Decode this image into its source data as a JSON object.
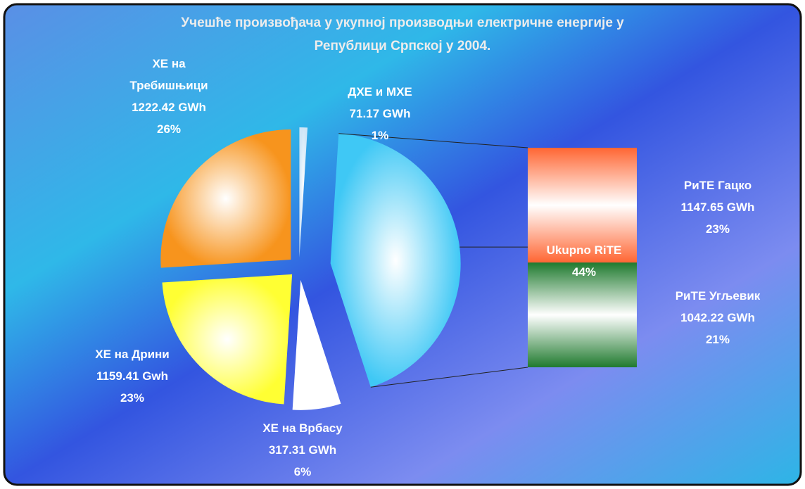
{
  "chart_data": {
    "type": "bar-of-pie",
    "title": [
      "Учешће произвођача у укупној производњи електричне енергије у",
      "Републици Српској у 2004."
    ],
    "categories": [
      "ДХЕ и МХЕ",
      "Ukupno RiTE",
      "ХЕ на Врбасу",
      "ХЕ на Дрини",
      "ХЕ на Требишњици"
    ],
    "values": [
      1,
      44,
      6,
      23,
      26
    ],
    "value_labels": [
      "1%",
      "44%",
      "6%",
      "23%",
      "26%"
    ],
    "gwh": [
      71.17,
      null,
      317.31,
      1159.41,
      1222.42
    ],
    "gwh_labels": [
      "71.17 GWh",
      null,
      "317.31 GWh",
      "1159.41 Gwh",
      "1222.42 GWh"
    ],
    "colors": [
      "#cfe6f7",
      "#3fc8f5",
      "#ffffff",
      "#ffff33",
      "#f7941d"
    ],
    "bar_segments": [
      {
        "name": "РиТЕ Угљевик",
        "value": 21,
        "value_label": "21%",
        "gwh": 1042.22,
        "gwh_label": "1042.22 GWh",
        "color": "#1f7a2e"
      },
      {
        "name": "РиТЕ Гацко",
        "value": 23,
        "value_label": "23%",
        "gwh": 1147.65,
        "gwh_label": "1147.65 GWh",
        "color": "#ff6633"
      }
    ]
  }
}
